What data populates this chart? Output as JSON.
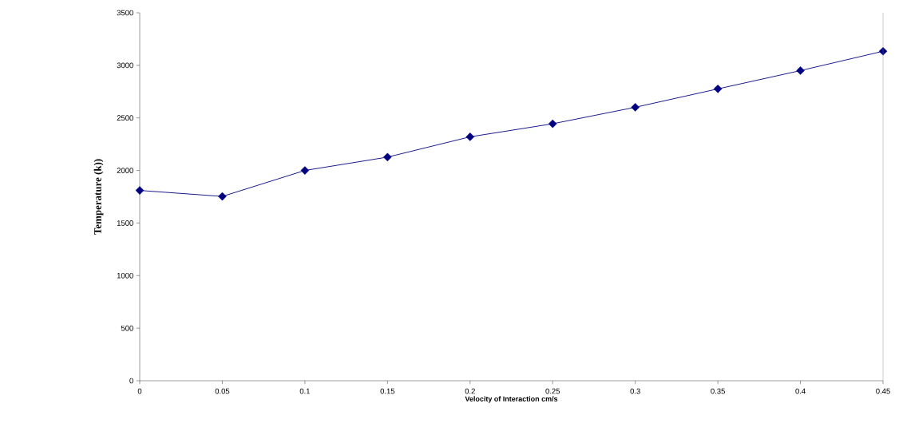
{
  "chart_data": {
    "type": "line",
    "xlabel": "Velocity of Interaction cm/s",
    "ylabel": "Temperature (k))",
    "x": [
      0,
      0.05,
      0.1,
      0.15,
      0.2,
      0.25,
      0.3,
      0.35,
      0.4,
      0.45
    ],
    "series": [
      {
        "color": "#000080",
        "values": [
          1810,
          1753,
          2000,
          2127,
          2320,
          2444,
          2601,
          2776,
          2950,
          3134
        ]
      }
    ],
    "xlim": [
      0,
      0.45
    ],
    "xticks": [
      0,
      0.05,
      0.1,
      0.15,
      0.2,
      0.25,
      0.3,
      0.35,
      0.4,
      0.45
    ],
    "ylim": [
      0,
      3500
    ],
    "yticks": [
      0,
      500,
      1000,
      1500,
      2000,
      2500,
      3000,
      3500
    ],
    "marker": "diamond",
    "line_style": "solid",
    "grid": false
  }
}
